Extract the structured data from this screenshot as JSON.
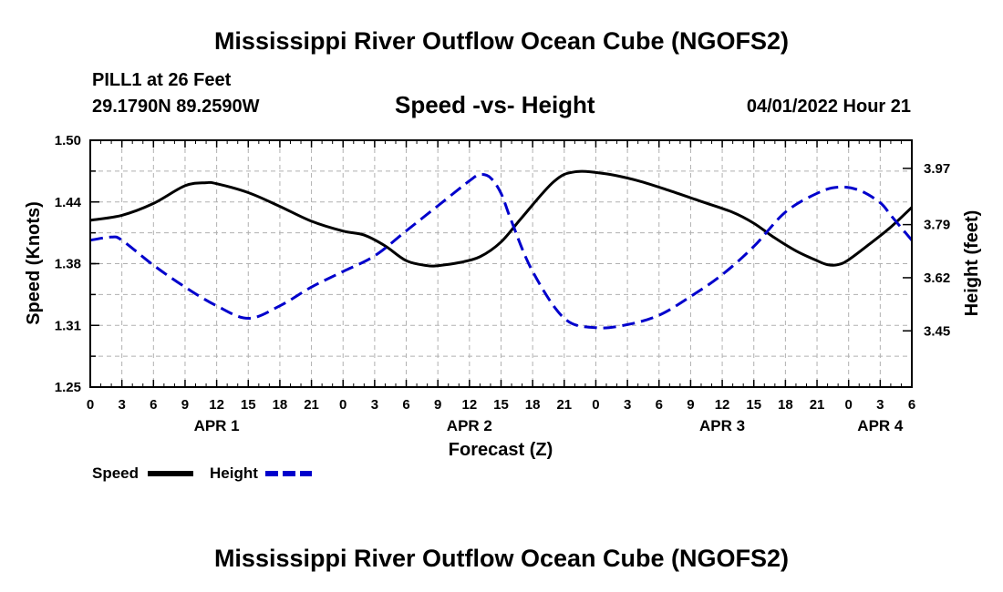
{
  "header": {
    "title": "Mississippi River Outflow Ocean Cube (NGOFS2)",
    "station": "PILL1 at 26 Feet",
    "coords": "29.1790N  89.2590W",
    "subtitle": "Speed -vs- Height",
    "datetime": "04/01/2022 Hour 21"
  },
  "footer": {
    "title": "Mississippi River Outflow Ocean Cube (NGOFS2)"
  },
  "legend": {
    "speed_label": "Speed",
    "height_label": "Height"
  },
  "colors": {
    "speed": "#000000",
    "height": "#0000cc",
    "grid": "#b0b0b0"
  },
  "chart_data": {
    "type": "line",
    "title": "Speed -vs- Height",
    "xlabel": "Forecast (Z)",
    "ylabel": "Speed (Knots)",
    "y2label": "Height (feet)",
    "x_range_hours": [
      0,
      78
    ],
    "ylim": [
      1.25,
      1.5
    ],
    "y2lim": [
      3.27,
      4.06
    ],
    "y_ticks": [
      "1.25",
      "1.31",
      "1.38",
      "1.44",
      "1.50"
    ],
    "y_tick_values": [
      1.25,
      1.3125,
      1.375,
      1.4375,
      1.5
    ],
    "y2_ticks": [
      "3.45",
      "3.62",
      "3.79",
      "3.97"
    ],
    "y2_tick_values": [
      3.45,
      3.62,
      3.79,
      3.97
    ],
    "x_tick_labels": [
      "0",
      "3",
      "6",
      "9",
      "12",
      "15",
      "18",
      "21",
      "0",
      "3",
      "6",
      "9",
      "12",
      "15",
      "18",
      "21",
      "0",
      "3",
      "6",
      "9",
      "12",
      "15",
      "18",
      "21",
      "0",
      "3",
      "6"
    ],
    "x_tick_hours": [
      0,
      3,
      6,
      9,
      12,
      15,
      18,
      21,
      24,
      27,
      30,
      33,
      36,
      39,
      42,
      45,
      48,
      51,
      54,
      57,
      60,
      63,
      66,
      69,
      72,
      75,
      78
    ],
    "day_labels": [
      {
        "label": "APR 1",
        "hour": 12
      },
      {
        "label": "APR 2",
        "hour": 36
      },
      {
        "label": "APR 3",
        "hour": 60
      },
      {
        "label": "APR 4",
        "hour": 75
      }
    ],
    "series": [
      {
        "name": "Speed",
        "axis": "left",
        "x": [
          0,
          3,
          6,
          9,
          11,
          12,
          15,
          18,
          21,
          24,
          26,
          28,
          30,
          32,
          33,
          35,
          37,
          39,
          41,
          44,
          46,
          49,
          52,
          55,
          58,
          61,
          63,
          65,
          67,
          69,
          70,
          71,
          72,
          74,
          76,
          78
        ],
        "values": [
          1.419,
          1.424,
          1.436,
          1.454,
          1.457,
          1.456,
          1.447,
          1.433,
          1.418,
          1.408,
          1.404,
          1.393,
          1.378,
          1.373,
          1.373,
          1.376,
          1.382,
          1.397,
          1.422,
          1.458,
          1.468,
          1.466,
          1.459,
          1.449,
          1.438,
          1.427,
          1.416,
          1.401,
          1.388,
          1.378,
          1.374,
          1.374,
          1.379,
          1.395,
          1.412,
          1.432
        ]
      },
      {
        "name": "Height",
        "axis": "right",
        "x": [
          0,
          2,
          3,
          6,
          9,
          12,
          15,
          18,
          21,
          24,
          27,
          30,
          33,
          36,
          37,
          38,
          39,
          40,
          42,
          45,
          48,
          51,
          54,
          57,
          60,
          63,
          66,
          69,
          71,
          73,
          75,
          76,
          77,
          78
        ],
        "values": [
          3.74,
          3.75,
          3.74,
          3.66,
          3.59,
          3.53,
          3.49,
          3.53,
          3.59,
          3.64,
          3.69,
          3.77,
          3.85,
          3.93,
          3.95,
          3.94,
          3.89,
          3.8,
          3.64,
          3.49,
          3.46,
          3.47,
          3.5,
          3.56,
          3.63,
          3.72,
          3.83,
          3.89,
          3.91,
          3.9,
          3.86,
          3.82,
          3.78,
          3.74
        ]
      }
    ]
  }
}
